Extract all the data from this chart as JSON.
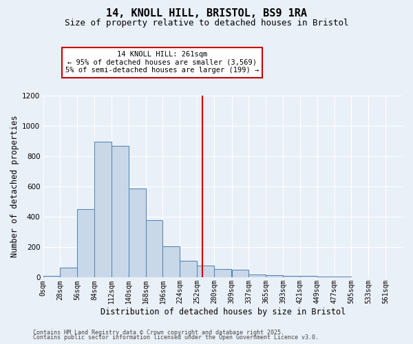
{
  "title_line1": "14, KNOLL HILL, BRISTOL, BS9 1RA",
  "title_line2": "Size of property relative to detached houses in Bristol",
  "xlabel": "Distribution of detached houses by size in Bristol",
  "ylabel": "Number of detached properties",
  "bin_starts": [
    0,
    28,
    56,
    84,
    112,
    140,
    168,
    196,
    224,
    252,
    280,
    309,
    337,
    365,
    393,
    421,
    449,
    477,
    505,
    533,
    561
  ],
  "bin_width": 28,
  "bar_heights": [
    10,
    65,
    450,
    895,
    870,
    585,
    380,
    205,
    110,
    80,
    55,
    50,
    20,
    15,
    12,
    10,
    5,
    5,
    2,
    2,
    1
  ],
  "bar_color": "#c8d8e8",
  "bar_edge_color": "#4a7fb5",
  "bg_color": "#eaf0f8",
  "grid_color": "#ffffff",
  "vline_x": 261,
  "vline_color": "#cc0000",
  "annotation_text": "14 KNOLL HILL: 261sqm\n← 95% of detached houses are smaller (3,569)\n5% of semi-detached houses are larger (199) →",
  "annotation_box_color": "#ffffff",
  "annotation_box_edge_color": "#cc0000",
  "ylim": [
    0,
    1200
  ],
  "yticks": [
    0,
    200,
    400,
    600,
    800,
    1000,
    1200
  ],
  "tick_labels": [
    "0sqm",
    "28sqm",
    "56sqm",
    "84sqm",
    "112sqm",
    "140sqm",
    "168sqm",
    "196sqm",
    "224sqm",
    "252sqm",
    "280sqm",
    "309sqm",
    "337sqm",
    "365sqm",
    "393sqm",
    "421sqm",
    "449sqm",
    "477sqm",
    "505sqm",
    "533sqm",
    "561sqm"
  ],
  "footer_line1": "Contains HM Land Registry data © Crown copyright and database right 2025.",
  "footer_line2": "Contains public sector information licensed under the Open Government Licence v3.0.",
  "title_fontsize": 11,
  "subtitle_fontsize": 9,
  "axis_label_fontsize": 8.5,
  "tick_fontsize": 7,
  "annotation_fontsize": 7.5,
  "footer_fontsize": 6
}
